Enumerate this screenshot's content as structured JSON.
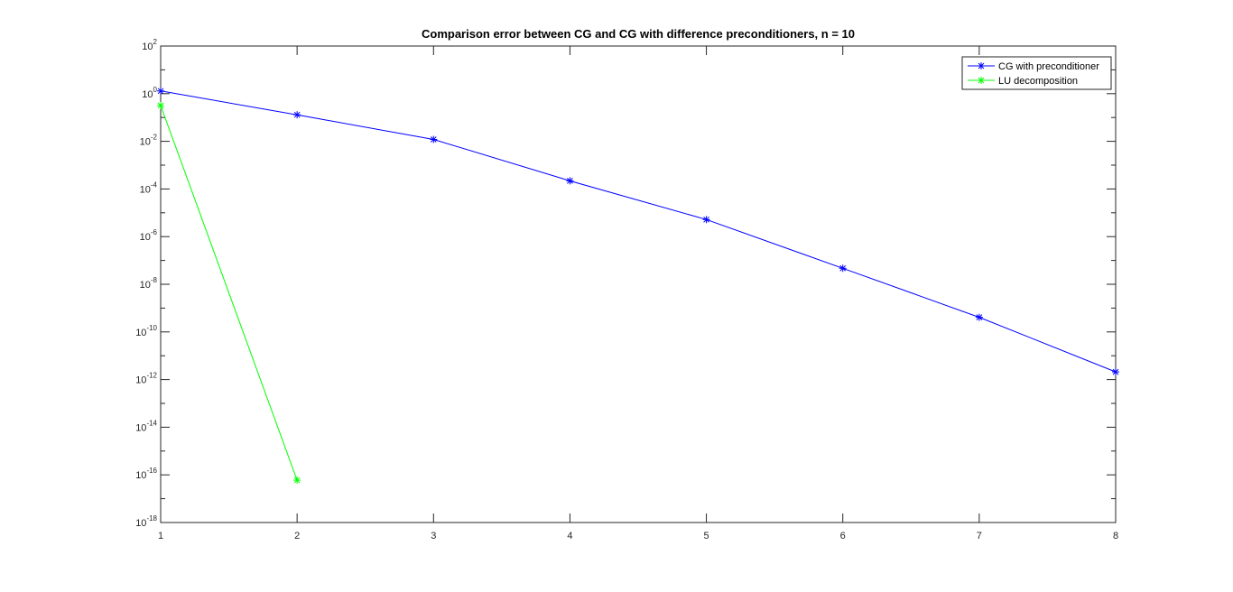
{
  "chart_data": {
    "type": "line",
    "title": "Comparison error between CG and CG with difference preconditioners, n = 10",
    "xlabel": "",
    "ylabel": "",
    "yscale": "log",
    "xlim": [
      1,
      8
    ],
    "ylim": [
      1e-18,
      100
    ],
    "x_ticks": [
      "1",
      "2",
      "3",
      "4",
      "5",
      "6",
      "7",
      "8"
    ],
    "y_tick_exponents": [
      "2",
      "0",
      "-2",
      "-4",
      "-6",
      "-8",
      "-10",
      "-12",
      "-14",
      "-16",
      "-18"
    ],
    "y_tick_base": "10",
    "grid": false,
    "legend_position": "top-right",
    "series": [
      {
        "name": "CG with preconditioner",
        "color": "#0000ff",
        "marker": "*",
        "x": [
          1,
          2,
          3,
          4,
          5,
          6,
          7,
          8
        ],
        "y": [
          1.3,
          0.13,
          0.012,
          0.00022,
          5.2e-06,
          4.7e-08,
          4.1e-10,
          2.1e-12
        ]
      },
      {
        "name": "LU decomposition",
        "color": "#00ff00",
        "marker": "*",
        "x": [
          1,
          2
        ],
        "y": [
          0.32,
          6e-17
        ]
      }
    ]
  }
}
